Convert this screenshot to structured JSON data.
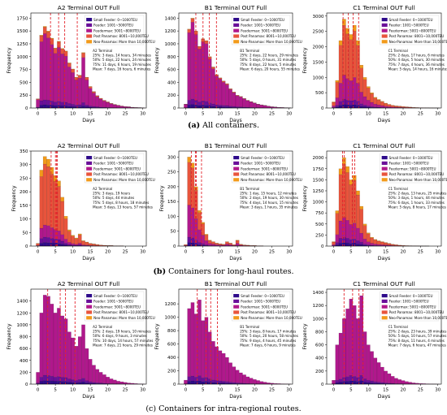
{
  "colors": {
    "small_feeder": "#2e0a8a",
    "feeder": "#6a0f99",
    "feedermax": "#b0188c",
    "post_panamax": "#e8543c",
    "neo_panamax": "#f29a1a",
    "median_line": "#e3232b"
  },
  "legend": [
    "Small Feeder: 0~1000TEU",
    "Feeder: 1001~5000TEU",
    "Feedermax: 5001~8000TEU",
    "Post Panamax: 8001~10,000TEU",
    "Neo-Panamax: More than 10,000TEU"
  ],
  "captions": {
    "a_label": "(a)",
    "a_text": " All containers.",
    "b_label": "(b)",
    "b_text": " Containers for long-haul routes.",
    "c_text": "(c) Containers for intra-regional routes."
  },
  "chart_data": [
    {
      "id": "a1",
      "type": "bar",
      "stacked": true,
      "title": "A2 Terminal OUT Full",
      "xlabel": "Days",
      "ylabel": "Frequency",
      "xlim": [
        -2,
        31
      ],
      "ylim": [
        0,
        1850
      ],
      "xticks": [
        0,
        5,
        10,
        15,
        20,
        25,
        30
      ],
      "yticks": [
        0,
        250,
        500,
        750,
        1000,
        1250,
        1500,
        1750
      ],
      "annotation": [
        "A2 Terminal",
        "25%: 3 days, 14 hours, 34 minutes",
        "50%: 5 days, 22 hours, 24 minutes",
        "75%: 11 days, 6 hours, 19 minutes",
        "Mean: 7 days, 16 hours, 6 minutes"
      ],
      "vlines": [
        3.61,
        5.93,
        7.67,
        11.26
      ],
      "total": [
        180,
        1420,
        1590,
        1500,
        1360,
        1170,
        1300,
        1160,
        1110,
        880,
        760,
        600,
        640,
        1080,
        600,
        420,
        320,
        240,
        190,
        150,
        120,
        90,
        70,
        55,
        40,
        30,
        25,
        15,
        10,
        8,
        5
      ],
      "orange_frac": 0.1
    },
    {
      "id": "a2",
      "type": "bar",
      "stacked": true,
      "title": "B1 Terminal OUT Full",
      "xlabel": "Days",
      "ylabel": "Frequency",
      "xlim": [
        -2,
        31
      ],
      "ylim": [
        0,
        1480
      ],
      "xticks": [
        0,
        5,
        10,
        15,
        20,
        25,
        30
      ],
      "yticks": [
        0,
        200,
        400,
        600,
        800,
        1000,
        1200,
        1400
      ],
      "annotation": [
        "B1 Terminal",
        "25%: 2 days, 22 hours, 29 minutes",
        "50%: 5 days, 0 hours, 31 minutes",
        "75%: 8 days, 22 hours, 5 minutes",
        "Mean: 6 days, 20 hours, 55 minutes"
      ],
      "vlines": [
        2.94,
        5.02,
        6.87,
        8.92
      ],
      "total": [
        60,
        1230,
        1400,
        1200,
        960,
        1080,
        1050,
        800,
        640,
        520,
        470,
        420,
        380,
        300,
        250,
        200,
        180,
        150,
        120,
        100,
        80,
        60,
        50,
        40,
        30,
        20,
        15,
        10,
        8,
        5,
        3
      ],
      "orange_frac": 0.05
    },
    {
      "id": "a3",
      "type": "bar",
      "stacked": true,
      "title": "C1 Terminal OUT Full",
      "xlabel": "Days",
      "ylabel": "Frequency",
      "xlim": [
        -2,
        31
      ],
      "ylim": [
        0,
        3100
      ],
      "xticks": [
        0,
        5,
        10,
        15,
        20,
        25,
        30
      ],
      "yticks": [
        0,
        500,
        1000,
        1500,
        2000,
        2500,
        3000
      ],
      "annotation": [
        "C1 Terminal",
        "25%: 2 days, 17 hours, 6 minutes",
        "50%: 4 days, 5 hours, 30 minutes",
        "75%: 7 days, 4 hours, 36 minutes",
        "Mean: 5 days, 14 hours, 16 minutes"
      ],
      "vlines": [
        2.71,
        4.23,
        5.59,
        7.19
      ],
      "total": [
        200,
        900,
        2200,
        2900,
        2600,
        2400,
        2700,
        2200,
        1400,
        1000,
        700,
        500,
        350,
        280,
        220,
        160,
        120,
        90,
        70,
        60,
        50,
        40,
        30,
        20,
        15,
        10,
        8,
        5,
        3,
        2,
        1
      ],
      "orange_frac": 0.7
    },
    {
      "id": "b1",
      "type": "bar",
      "stacked": true,
      "title": "A2 Terminal OUT Full",
      "xlabel": "Days",
      "ylabel": "Frequency",
      "xlim": [
        -2,
        31
      ],
      "ylim": [
        0,
        350
      ],
      "xticks": [
        0,
        5,
        10,
        15,
        20,
        25,
        30
      ],
      "yticks": [
        0,
        50,
        100,
        150,
        200,
        250,
        300,
        350
      ],
      "annotation": [
        "A2 Terminal",
        "25%: 3 days, 19 hours",
        "50%: 5 days, 44 minutes",
        "75%: 5 days, 8 hours, 18 minutes",
        "Mean: 5 days, 13 hours, 57 minutes"
      ],
      "vlines": [
        3.79,
        5.03,
        5.35,
        5.58
      ],
      "total": [
        10,
        280,
        330,
        320,
        290,
        260,
        240,
        180,
        110,
        60,
        40,
        30,
        45,
        20,
        15,
        10,
        8,
        6,
        4,
        3,
        2,
        2,
        1,
        1,
        1,
        0,
        0,
        0,
        0,
        0,
        0
      ],
      "orange_frac": 0.85
    },
    {
      "id": "b2",
      "type": "bar",
      "stacked": true,
      "title": "B1 Terminal OUT Full",
      "xlabel": "Days",
      "ylabel": "Frequency",
      "xlim": [
        -2,
        31
      ],
      "ylim": [
        0,
        320
      ],
      "xticks": [
        0,
        5,
        10,
        15,
        20,
        25,
        30
      ],
      "yticks": [
        0,
        50,
        100,
        150,
        200,
        250,
        300
      ],
      "annotation": [
        "B1 Terminal",
        "25%: 1 day, 15 hours, 12 minutes",
        "50%: 2 days, 19 hours, 30 minutes",
        "75%: 4 days, 14 hours, 15 minutes",
        "Mean: 3 days, 1 hours, 35 minutes"
      ],
      "vlines": [
        1.63,
        2.81,
        3.07,
        4.59
      ],
      "total": [
        5,
        300,
        280,
        200,
        120,
        80,
        40,
        20,
        15,
        10,
        8,
        6,
        15,
        10,
        5,
        20,
        6,
        4,
        3,
        2,
        2,
        1,
        1,
        0,
        0,
        0,
        0,
        0,
        0,
        0,
        0
      ],
      "orange_frac": 0.6
    },
    {
      "id": "b3",
      "type": "bar",
      "stacked": true,
      "title": "C1 Terminal OUT Full",
      "xlabel": "Days",
      "ylabel": "Frequency",
      "xlim": [
        -2,
        31
      ],
      "ylim": [
        0,
        2150
      ],
      "xticks": [
        0,
        5,
        10,
        15,
        20,
        25,
        30
      ],
      "yticks": [
        0,
        250,
        500,
        750,
        1000,
        1250,
        1500,
        1750,
        2000
      ],
      "annotation": [
        "C1 Terminal",
        "25%: 2 days, 13 hours, 25 minutes",
        "50%: 3 days, 1 hours, 44 minutes",
        "75%: 6 days, 1 hours, 33 minutes",
        "Mean: 5 days, 8 hours, 17 minutes"
      ],
      "vlines": [
        2.56,
        3.07,
        5.35,
        6.06
      ],
      "total": [
        100,
        800,
        1750,
        2000,
        1800,
        1500,
        1600,
        1250,
        900,
        500,
        300,
        200,
        150,
        120,
        100,
        80,
        60,
        40,
        30,
        20,
        15,
        10,
        8,
        5,
        3,
        2,
        1,
        1,
        0,
        0,
        0
      ],
      "orange_frac": 0.75
    },
    {
      "id": "c1",
      "type": "bar",
      "stacked": true,
      "title": "A2 Terminal OUT Full",
      "xlabel": "Days",
      "ylabel": "Frequency",
      "xlim": [
        -2,
        31
      ],
      "ylim": [
        0,
        1600
      ],
      "xticks": [
        0,
        5,
        10,
        15,
        20,
        25,
        30
      ],
      "yticks": [
        0,
        200,
        400,
        600,
        800,
        1000,
        1200,
        1400
      ],
      "annotation": [
        "A2 Terminal",
        "25%: 2 days, 19 hours, 10 minutes",
        "50%: 6 days, 9 hours, 3 minutes",
        "75%: 10 days, 14 hours, 57 minutes",
        "Mean: 7 days, 21 hours, 29 minutes"
      ],
      "vlines": [
        2.8,
        6.38,
        7.9,
        10.62
      ],
      "total": [
        200,
        1200,
        1500,
        1480,
        1350,
        1200,
        1280,
        1150,
        1100,
        880,
        780,
        640,
        800,
        1000,
        600,
        420,
        320,
        250,
        200,
        160,
        120,
        90,
        70,
        50,
        40,
        30,
        20,
        15,
        10,
        5,
        3
      ],
      "orange_frac": 0.0
    },
    {
      "id": "c2",
      "type": "bar",
      "stacked": true,
      "title": "B1 Terminal OUT Full",
      "xlabel": "Days",
      "ylabel": "Frequency",
      "xlim": [
        -2,
        31
      ],
      "ylim": [
        0,
        1420
      ],
      "xticks": [
        0,
        5,
        10,
        15,
        20,
        25,
        30
      ],
      "yticks": [
        0,
        200,
        400,
        600,
        800,
        1000,
        1200
      ],
      "annotation": [
        "B1 Terminal",
        "25%: 3 days, 8 hours, 17 minutes",
        "50%: 5 days, 20 hours, 58 minutes",
        "75%: 9 days, 4 hours, 45 minutes",
        "Mean: 7 days, 6 hours, 9 minutes"
      ],
      "vlines": [
        3.35,
        5.87,
        7.26,
        9.2
      ],
      "total": [
        60,
        1130,
        1220,
        1050,
        1260,
        950,
        1000,
        780,
        640,
        560,
        500,
        460,
        400,
        320,
        260,
        210,
        170,
        140,
        110,
        90,
        70,
        55,
        40,
        30,
        20,
        15,
        10,
        8,
        5,
        3,
        2
      ],
      "orange_frac": 0.0
    },
    {
      "id": "c3",
      "type": "bar",
      "stacked": true,
      "title": "C1 Terminal OUT Full",
      "xlabel": "Days",
      "ylabel": "Frequency",
      "xlim": [
        -2,
        31
      ],
      "ylim": [
        0,
        1450
      ],
      "xticks": [
        0,
        5,
        10,
        15,
        20,
        25,
        30
      ],
      "yticks": [
        0,
        200,
        400,
        600,
        800,
        1000,
        1200,
        1400
      ],
      "annotation": [
        "C1 Terminal",
        "25%: 2 days, 23 hours, 39 minutes",
        "50%: 5 days, 10 hours, 57 minutes",
        "75%: 8 days, 11 hours, 4 minutes",
        "Mean: 7 days, 6 hours, 47 minutes"
      ],
      "vlines": [
        2.99,
        5.46,
        7.28,
        8.46
      ],
      "total": [
        60,
        600,
        780,
        1000,
        1150,
        1300,
        1200,
        1000,
        1350,
        800,
        600,
        500,
        400,
        330,
        260,
        200,
        160,
        120,
        90,
        70,
        55,
        40,
        30,
        20,
        15,
        10,
        8,
        5,
        3,
        2,
        1
      ],
      "orange_frac": 0.0
    }
  ]
}
